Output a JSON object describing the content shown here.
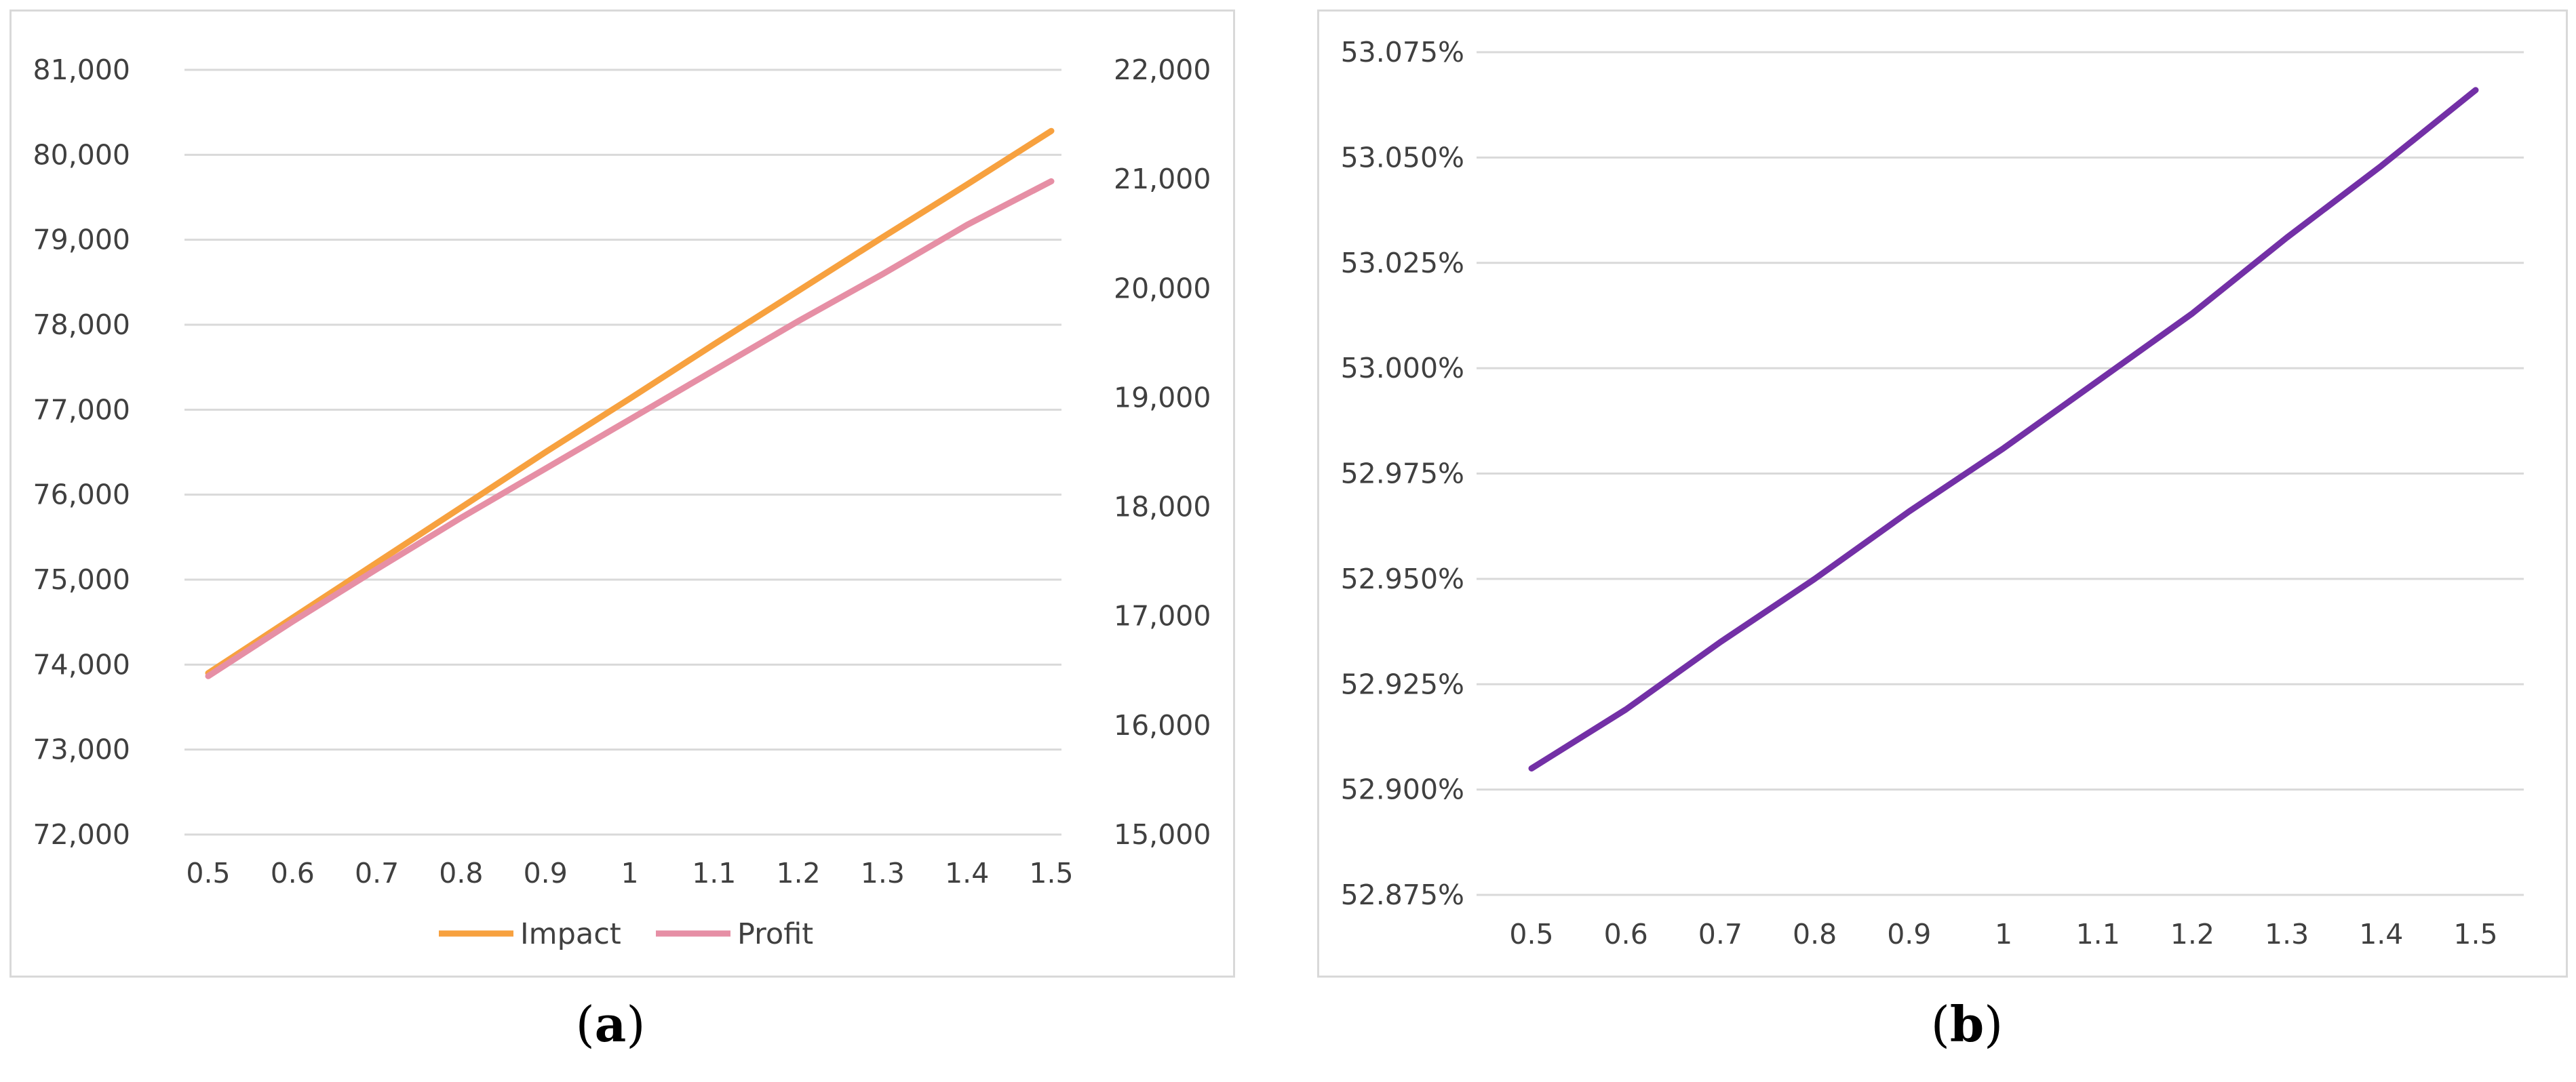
{
  "captions": {
    "a": "a",
    "b": "b"
  },
  "colors": {
    "impact": "#f7a13f",
    "profit": "#e68fa5",
    "ratio": "#7330a6",
    "grid": "#d9d9d9",
    "text": "#404040"
  },
  "chart_data": [
    {
      "id": "a",
      "type": "line",
      "x": [
        "0.5",
        "0.6",
        "0.7",
        "0.8",
        "0.9",
        "1",
        "1.1",
        "1.2",
        "1.3",
        "1.4",
        "1.5"
      ],
      "y_left_ticks": [
        "72,000",
        "73,000",
        "74,000",
        "75,000",
        "76,000",
        "77,000",
        "78,000",
        "79,000",
        "80,000",
        "81,000"
      ],
      "y_right_ticks": [
        "15,000",
        "16,000",
        "17,000",
        "18,000",
        "19,000",
        "20,000",
        "21,000",
        "22,000"
      ],
      "ylim_left": [
        72000,
        81000
      ],
      "ylim_right": [
        15000,
        22000
      ],
      "series": [
        {
          "name": "Impact",
          "axis": "left",
          "values": [
            73900,
            74550,
            75200,
            75850,
            76500,
            77130,
            77770,
            78400,
            79030,
            79650,
            80280
          ]
        },
        {
          "name": "Profit",
          "axis": "right",
          "values": [
            16450,
            16950,
            17430,
            17900,
            18350,
            18800,
            19250,
            19700,
            20130,
            20580,
            20980
          ]
        }
      ],
      "grid": "horizontal",
      "legend_position": "bottom-center"
    },
    {
      "id": "b",
      "type": "line",
      "x": [
        "0.5",
        "0.6",
        "0.7",
        "0.8",
        "0.9",
        "1",
        "1.1",
        "1.2",
        "1.3",
        "1.4",
        "1.5"
      ],
      "y_ticks": [
        "52.875%",
        "52.900%",
        "52.925%",
        "52.950%",
        "52.975%",
        "53.000%",
        "53.025%",
        "53.050%",
        "53.075%"
      ],
      "ylim": [
        52.875,
        53.075
      ],
      "series": [
        {
          "values": [
            52.905,
            52.919,
            52.935,
            52.95,
            52.966,
            52.981,
            52.997,
            53.013,
            53.031,
            53.048,
            53.066
          ]
        }
      ],
      "grid": "horizontal",
      "legend": "none"
    }
  ]
}
